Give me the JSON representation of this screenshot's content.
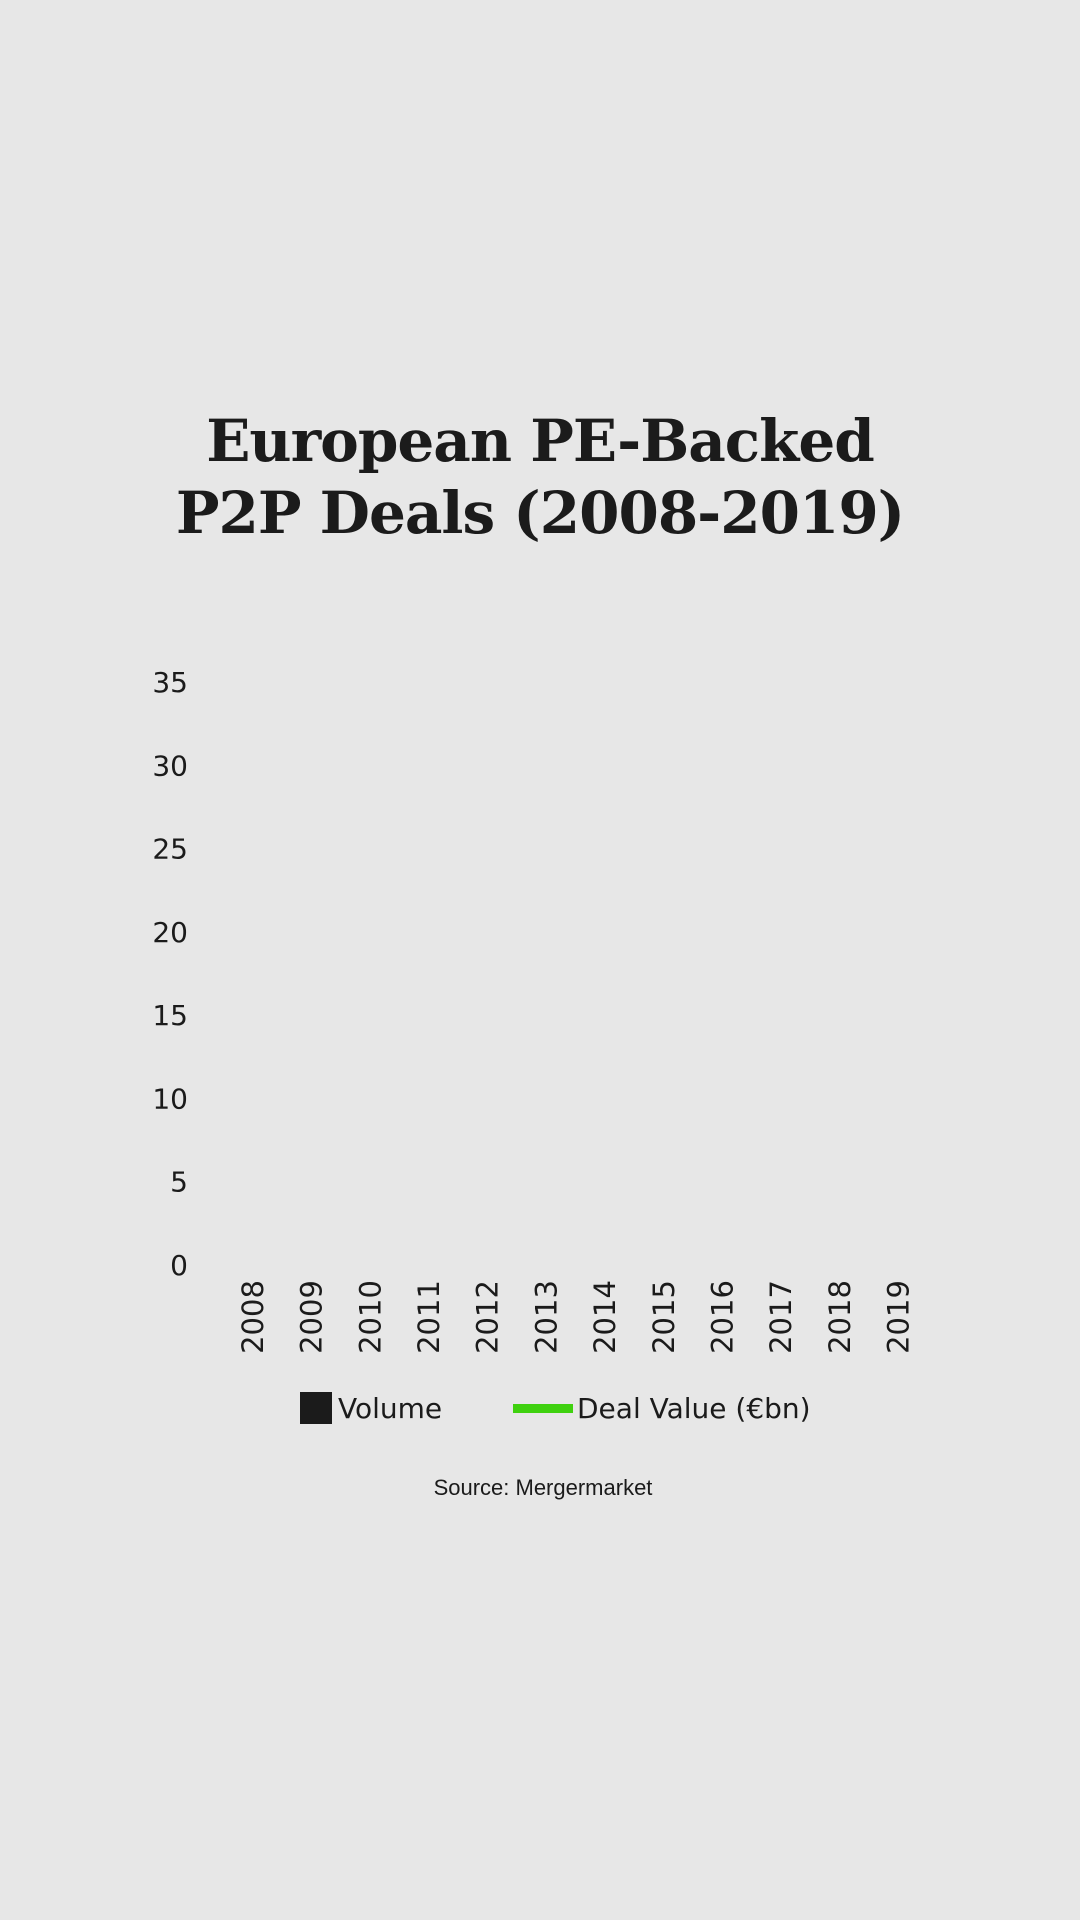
{
  "chart_data": {
    "type": "bar",
    "title_lines": [
      "European PE-Backed",
      "P2P Deals (2008-2019)"
    ],
    "categories": [
      "2008",
      "2009",
      "2010",
      "2011",
      "2012",
      "2013",
      "2014",
      "2015",
      "2016",
      "2017",
      "2018",
      "2019"
    ],
    "yticks": [
      "0",
      "5",
      "10",
      "15",
      "20",
      "25",
      "30",
      "35"
    ],
    "ylim": [
      0,
      35
    ],
    "grid": false,
    "legend_position": "bottom",
    "legend": [
      {
        "label": "Volume",
        "color": "#1b1b1b",
        "marker": "square"
      },
      {
        "label": "Deal Value (€bn)",
        "color": "#3fd10f",
        "marker": "line"
      }
    ]
  },
  "source": "Source: Mergermarket"
}
